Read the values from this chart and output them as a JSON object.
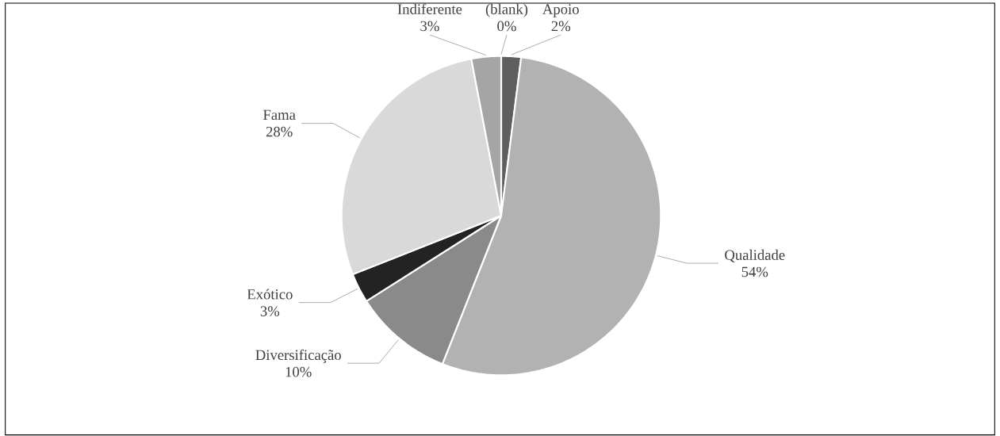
{
  "chart_data": {
    "type": "pie",
    "categories": [
      "Apoio",
      "Qualidade",
      "Diversificação",
      "Exótico",
      "Fama",
      "Indiferente",
      "(blank)"
    ],
    "values": [
      2,
      54,
      10,
      3,
      28,
      3,
      0
    ],
    "value_labels": [
      "2%",
      "54%",
      "10%",
      "3%",
      "28%",
      "3%",
      "0%"
    ],
    "colors": [
      "#5f5f5f",
      "#b2b2b2",
      "#8a8a8a",
      "#232323",
      "#d9d9d9",
      "#a5a5a5",
      "#ffffff"
    ]
  }
}
